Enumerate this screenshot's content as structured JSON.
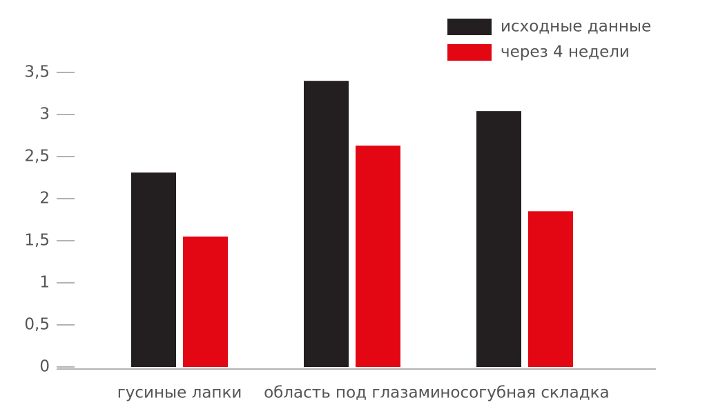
{
  "chart_data": {
    "type": "bar",
    "categories": [
      "гусиные лапки",
      "область под глазами",
      "носогубная складка"
    ],
    "series": [
      {
        "name": "исходные данные",
        "color": "#231f20",
        "values": [
          2.31,
          3.4,
          3.04
        ]
      },
      {
        "name": "через 4 недели",
        "color": "#e30613",
        "values": [
          1.55,
          2.63,
          1.85
        ]
      }
    ],
    "ylim": [
      0,
      3.5
    ],
    "yticks": [
      0,
      {
        "value": 0.5,
        "label": "0,5"
      },
      1,
      {
        "value": 1.5,
        "label": "1,5"
      },
      2,
      {
        "value": 2.5,
        "label": "2,5"
      },
      3,
      {
        "value": 3.5,
        "label": "3,5"
      }
    ],
    "legend": "top-right"
  }
}
